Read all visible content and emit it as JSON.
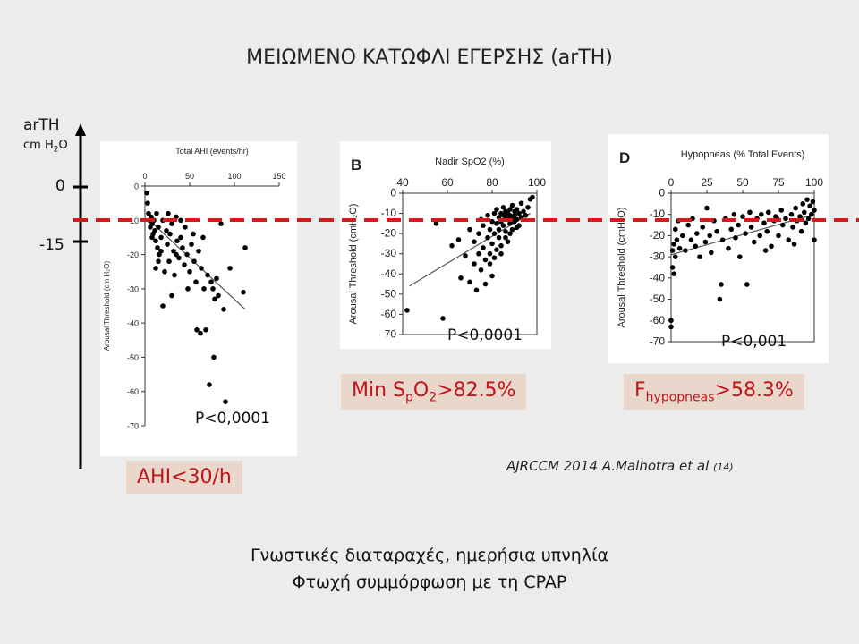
{
  "title": "ΜΕΙΩΜΕΝΟ ΚΑΤΩΦΛΙ ΕΓΕΡΣΗΣ (arTH)",
  "main_axis": {
    "label_line1": "arTH",
    "label_line2_prefix": "cm H",
    "label_line2_sub": "2",
    "label_line2_suffix": "O",
    "tick_0": "0",
    "tick_15": "-15"
  },
  "chart_data": [
    {
      "type": "scatter",
      "title": "Total AHI (events/hr)",
      "ylabel": "Arousal Threshold (cm H₂O)",
      "xlim": [
        0,
        150
      ],
      "ylim": [
        -70,
        0
      ],
      "xticks": [
        "0",
        "50",
        "100",
        "150"
      ],
      "yticks": [
        "0",
        "-10",
        "-20",
        "-30",
        "-40",
        "-50",
        "-60",
        "-70"
      ],
      "points": [
        [
          2,
          -2
        ],
        [
          3,
          -5
        ],
        [
          4,
          -8
        ],
        [
          5,
          -10
        ],
        [
          6,
          -12
        ],
        [
          7,
          -9
        ],
        [
          8,
          -11
        ],
        [
          9,
          -14
        ],
        [
          10,
          -10
        ],
        [
          11,
          -13
        ],
        [
          12,
          -16
        ],
        [
          13,
          -8
        ],
        [
          14,
          -18
        ],
        [
          15,
          -12
        ],
        [
          16,
          -20
        ],
        [
          18,
          -15
        ],
        [
          20,
          -10
        ],
        [
          22,
          -25
        ],
        [
          24,
          -13
        ],
        [
          25,
          -17
        ],
        [
          27,
          -22
        ],
        [
          28,
          -14
        ],
        [
          30,
          -11
        ],
        [
          32,
          -19
        ],
        [
          33,
          -26
        ],
        [
          35,
          -9
        ],
        [
          36,
          -16
        ],
        [
          38,
          -21
        ],
        [
          40,
          -15
        ],
        [
          42,
          -18
        ],
        [
          44,
          -23
        ],
        [
          45,
          -12
        ],
        [
          47,
          -20
        ],
        [
          48,
          -30
        ],
        [
          50,
          -25
        ],
        [
          52,
          -17
        ],
        [
          54,
          -14
        ],
        [
          55,
          -22
        ],
        [
          57,
          -28
        ],
        [
          58,
          -42
        ],
        [
          60,
          -19
        ],
        [
          62,
          -43
        ],
        [
          63,
          -24
        ],
        [
          65,
          -15
        ],
        [
          66,
          -30
        ],
        [
          68,
          -42
        ],
        [
          70,
          -26
        ],
        [
          72,
          -58
        ],
        [
          74,
          -28
        ],
        [
          76,
          -30
        ],
        [
          77,
          -50
        ],
        [
          78,
          -33
        ],
        [
          80,
          -27
        ],
        [
          82,
          -32
        ],
        [
          85,
          -11
        ],
        [
          88,
          -36
        ],
        [
          90,
          -63
        ],
        [
          95,
          -24
        ],
        [
          110,
          -31
        ],
        [
          112,
          -18
        ],
        [
          20,
          -35
        ],
        [
          15,
          -22
        ],
        [
          8,
          -15
        ],
        [
          26,
          -8
        ],
        [
          30,
          -32
        ],
        [
          35,
          -20
        ],
        [
          40,
          -10
        ],
        [
          12,
          -24
        ],
        [
          18,
          -19
        ]
      ],
      "trend": [
        [
          5,
          -10
        ],
        [
          112,
          -36
        ]
      ],
      "p_value": "P<0,0001",
      "threshold_label_parts": [
        "AHI<30/h"
      ]
    },
    {
      "type": "scatter",
      "panel_letter": "B",
      "title": "Nadir SpO2 (%)",
      "ylabel": "Arousal Threshold (cmH₂O)",
      "xlim": [
        40,
        100
      ],
      "ylim": [
        -70,
        0
      ],
      "xticks": [
        "40",
        "60",
        "80",
        "100"
      ],
      "yticks": [
        "0",
        "-10",
        "-20",
        "-30",
        "-40",
        "-50",
        "-60",
        "-70"
      ],
      "points": [
        [
          42,
          -58
        ],
        [
          58,
          -62
        ],
        [
          55,
          -15
        ],
        [
          62,
          -26
        ],
        [
          65,
          -23
        ],
        [
          66,
          -42
        ],
        [
          68,
          -31
        ],
        [
          70,
          -44
        ],
        [
          70,
          -18
        ],
        [
          72,
          -35
        ],
        [
          72,
          -24
        ],
        [
          73,
          -48
        ],
        [
          74,
          -20
        ],
        [
          75,
          -38
        ],
        [
          75,
          -13
        ],
        [
          76,
          -27
        ],
        [
          76,
          -16
        ],
        [
          77,
          -33
        ],
        [
          78,
          -22
        ],
        [
          78,
          -11
        ],
        [
          79,
          -30
        ],
        [
          79,
          -18
        ],
        [
          80,
          -41
        ],
        [
          80,
          -14
        ],
        [
          80,
          -25
        ],
        [
          81,
          -10
        ],
        [
          81,
          -20
        ],
        [
          82,
          -28
        ],
        [
          82,
          -15
        ],
        [
          82,
          -8
        ],
        [
          83,
          -12
        ],
        [
          83,
          -22
        ],
        [
          83,
          -18
        ],
        [
          84,
          -10
        ],
        [
          84,
          -14
        ],
        [
          84,
          -26
        ],
        [
          85,
          -11
        ],
        [
          85,
          -16
        ],
        [
          85,
          -7
        ],
        [
          86,
          -12
        ],
        [
          86,
          -19
        ],
        [
          86,
          -9
        ],
        [
          87,
          -13
        ],
        [
          87,
          -10
        ],
        [
          87,
          -24
        ],
        [
          88,
          -8
        ],
        [
          88,
          -15
        ],
        [
          88,
          -11
        ],
        [
          89,
          -12
        ],
        [
          89,
          -18
        ],
        [
          89,
          -6
        ],
        [
          90,
          -9
        ],
        [
          90,
          -14
        ],
        [
          90,
          -11
        ],
        [
          91,
          -13
        ],
        [
          91,
          -8
        ],
        [
          92,
          -10
        ],
        [
          92,
          -16
        ],
        [
          93,
          -12
        ],
        [
          93,
          -5
        ],
        [
          94,
          -9
        ],
        [
          95,
          -11
        ],
        [
          96,
          -7
        ],
        [
          97,
          -3
        ],
        [
          98,
          -2
        ],
        [
          77,
          -45
        ],
        [
          74,
          -30
        ],
        [
          79,
          -35
        ],
        [
          84,
          -30
        ],
        [
          86,
          -22
        ],
        [
          88,
          -20
        ],
        [
          91,
          -17
        ],
        [
          81,
          -32
        ]
      ],
      "trend": [
        [
          43,
          -46
        ],
        [
          97,
          -10
        ]
      ],
      "p_value": "P<0,0001",
      "threshold_label_parts": [
        "Min S",
        "p",
        "O",
        "2",
        ">82.5%"
      ]
    },
    {
      "type": "scatter",
      "panel_letter": "D",
      "title": "Hypopneas (% Total Events)",
      "ylabel": "Arousal Threshold (cmH₂O)",
      "xlim": [
        0,
        100
      ],
      "ylim": [
        -70,
        0
      ],
      "xticks": [
        "0",
        "25",
        "50",
        "75",
        "100"
      ],
      "yticks": [
        "0",
        "-10",
        "-20",
        "-30",
        "-40",
        "-50",
        "-60",
        "-70"
      ],
      "points": [
        [
          0,
          -60
        ],
        [
          0,
          -63
        ],
        [
          1,
          -35
        ],
        [
          1,
          -27
        ],
        [
          2,
          -24
        ],
        [
          2,
          -38
        ],
        [
          3,
          -30
        ],
        [
          3,
          -17
        ],
        [
          4,
          -22
        ],
        [
          5,
          -13
        ],
        [
          6,
          -26
        ],
        [
          8,
          -20
        ],
        [
          10,
          -27
        ],
        [
          12,
          -15
        ],
        [
          14,
          -22
        ],
        [
          15,
          -12
        ],
        [
          17,
          -25
        ],
        [
          18,
          -19
        ],
        [
          20,
          -30
        ],
        [
          22,
          -16
        ],
        [
          24,
          -23
        ],
        [
          25,
          -7
        ],
        [
          27,
          -20
        ],
        [
          28,
          -28
        ],
        [
          30,
          -13
        ],
        [
          32,
          -18
        ],
        [
          34,
          -50
        ],
        [
          35,
          -43
        ],
        [
          36,
          -22
        ],
        [
          38,
          -12
        ],
        [
          40,
          -26
        ],
        [
          42,
          -17
        ],
        [
          44,
          -10
        ],
        [
          45,
          -21
        ],
        [
          47,
          -15
        ],
        [
          48,
          -30
        ],
        [
          50,
          -11
        ],
        [
          52,
          -19
        ],
        [
          53,
          -43
        ],
        [
          55,
          -9
        ],
        [
          56,
          -16
        ],
        [
          58,
          -23
        ],
        [
          60,
          -12
        ],
        [
          62,
          -20
        ],
        [
          63,
          -10
        ],
        [
          65,
          -14
        ],
        [
          67,
          -18
        ],
        [
          68,
          -9
        ],
        [
          70,
          -25
        ],
        [
          72,
          -13
        ],
        [
          73,
          -11
        ],
        [
          75,
          -20
        ],
        [
          77,
          -8
        ],
        [
          78,
          -15
        ],
        [
          80,
          -12
        ],
        [
          82,
          -22
        ],
        [
          84,
          -10
        ],
        [
          85,
          -16
        ],
        [
          87,
          -7
        ],
        [
          88,
          -13
        ],
        [
          90,
          -11
        ],
        [
          91,
          -18
        ],
        [
          92,
          -5
        ],
        [
          93,
          -9
        ],
        [
          94,
          -14
        ],
        [
          95,
          -3
        ],
        [
          96,
          -12
        ],
        [
          97,
          -6
        ],
        [
          98,
          -10
        ],
        [
          99,
          -4
        ],
        [
          100,
          -8
        ],
        [
          100,
          -22
        ],
        [
          86,
          -24
        ],
        [
          74,
          -12
        ],
        [
          66,
          -27
        ]
      ],
      "trend": [
        [
          0,
          -29
        ],
        [
          100,
          -10
        ]
      ],
      "p_value": "P<0,001",
      "threshold_label_parts": [
        "F",
        "hypopneas",
        ">58.3%"
      ]
    }
  ],
  "citation": "AJRCCM 2014  A.Malhotra et al ",
  "citation_ref": "(14)",
  "footer_line1": "Γνωστικές διαταραχές, ημερήσια υπνηλία",
  "footer_line2": "Φτωχή συμμόρφωση με τη CPAP",
  "colors": {
    "threshold_line": "#d7191c",
    "box_bg": "#ead7cb",
    "box_text": "#c0141a",
    "points": "#000000"
  }
}
